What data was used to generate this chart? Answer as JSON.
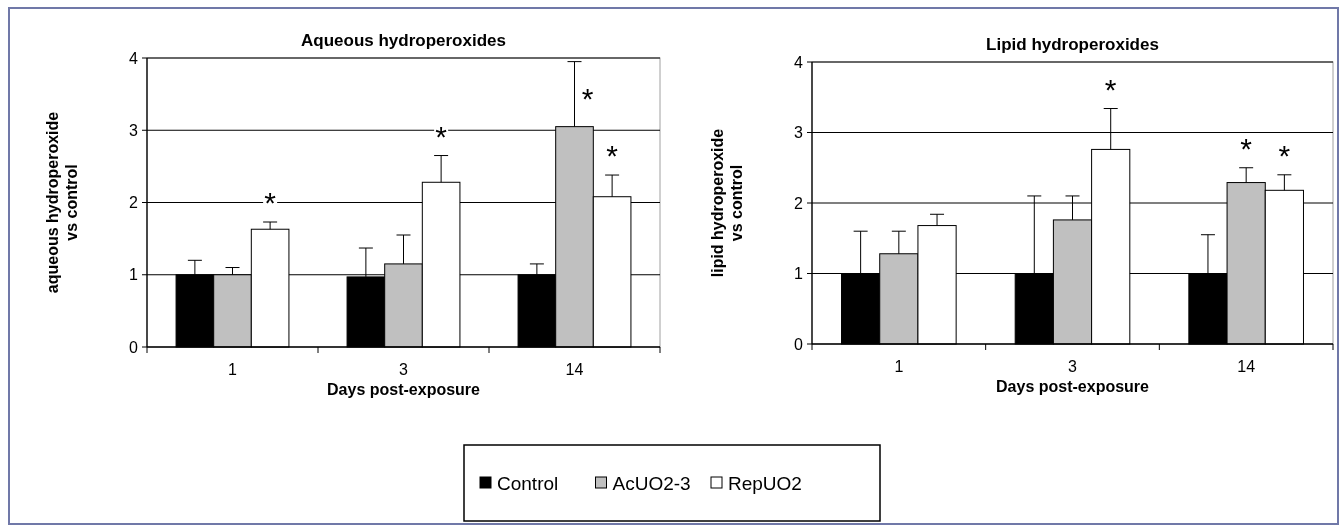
{
  "chart_data": [
    {
      "type": "bar",
      "title": "Aqueous hydroperoxides",
      "xlabel": "Days post-exposure",
      "ylabel": "aqueous hydroperoxide vs control",
      "categories": [
        "1",
        "3",
        "14"
      ],
      "series": [
        {
          "name": "Control",
          "color": "#000000",
          "values": [
            1,
            0.97,
            1
          ],
          "errors": [
            [
              1,
              1.2
            ],
            [
              0.97,
              1.37
            ],
            [
              1,
              1.15
            ]
          ]
        },
        {
          "name": "AcUO2-3",
          "color": "#c0c0c0",
          "values": [
            1,
            1.15,
            3.05
          ],
          "errors": [
            [
              1,
              1.1
            ],
            [
              1.15,
              1.55
            ],
            [
              3.05,
              3.95
            ]
          ],
          "value_labels": [
            null,
            null,
            "*"
          ]
        },
        {
          "name": "RepUO2",
          "color": "#ffffff",
          "values": [
            1.63,
            2.28,
            2.08
          ],
          "errors": [
            [
              1.63,
              1.73
            ],
            [
              2.28,
              2.65
            ],
            [
              2.08,
              2.38
            ]
          ],
          "value_labels": [
            "*",
            "*",
            "*"
          ]
        }
      ],
      "ylim": [
        0,
        4
      ],
      "yticks": [
        0,
        1,
        2,
        3,
        4
      ],
      "grid": "y",
      "legend": "bottom"
    },
    {
      "type": "bar",
      "title": "Lipid hydroperoxides",
      "xlabel": "Days post-exposure",
      "ylabel": "lipid hydroperoxide vs control",
      "categories": [
        "1",
        "3",
        "14"
      ],
      "series": [
        {
          "name": "Control",
          "color": "#000000",
          "values": [
            1,
            1,
            1
          ],
          "errors": [
            [
              1,
              1.6
            ],
            [
              1,
              2.1
            ],
            [
              1,
              1.55
            ]
          ]
        },
        {
          "name": "AcUO2-3",
          "color": "#c0c0c0",
          "values": [
            1.28,
            1.76,
            2.29
          ],
          "errors": [
            [
              1.28,
              1.6
            ],
            [
              1.76,
              2.1
            ],
            [
              2.29,
              2.5
            ]
          ],
          "value_labels": [
            null,
            null,
            "*"
          ]
        },
        {
          "name": "RepUO2",
          "color": "#ffffff",
          "values": [
            1.68,
            2.76,
            2.18
          ],
          "errors": [
            [
              1.68,
              1.84
            ],
            [
              2.76,
              3.34
            ],
            [
              2.18,
              2.4
            ]
          ],
          "value_labels": [
            null,
            "*",
            "*"
          ]
        }
      ],
      "ylim": [
        0,
        4
      ],
      "yticks": [
        0,
        1,
        2,
        3,
        4
      ],
      "grid": "y",
      "legend": "bottom"
    }
  ]
}
